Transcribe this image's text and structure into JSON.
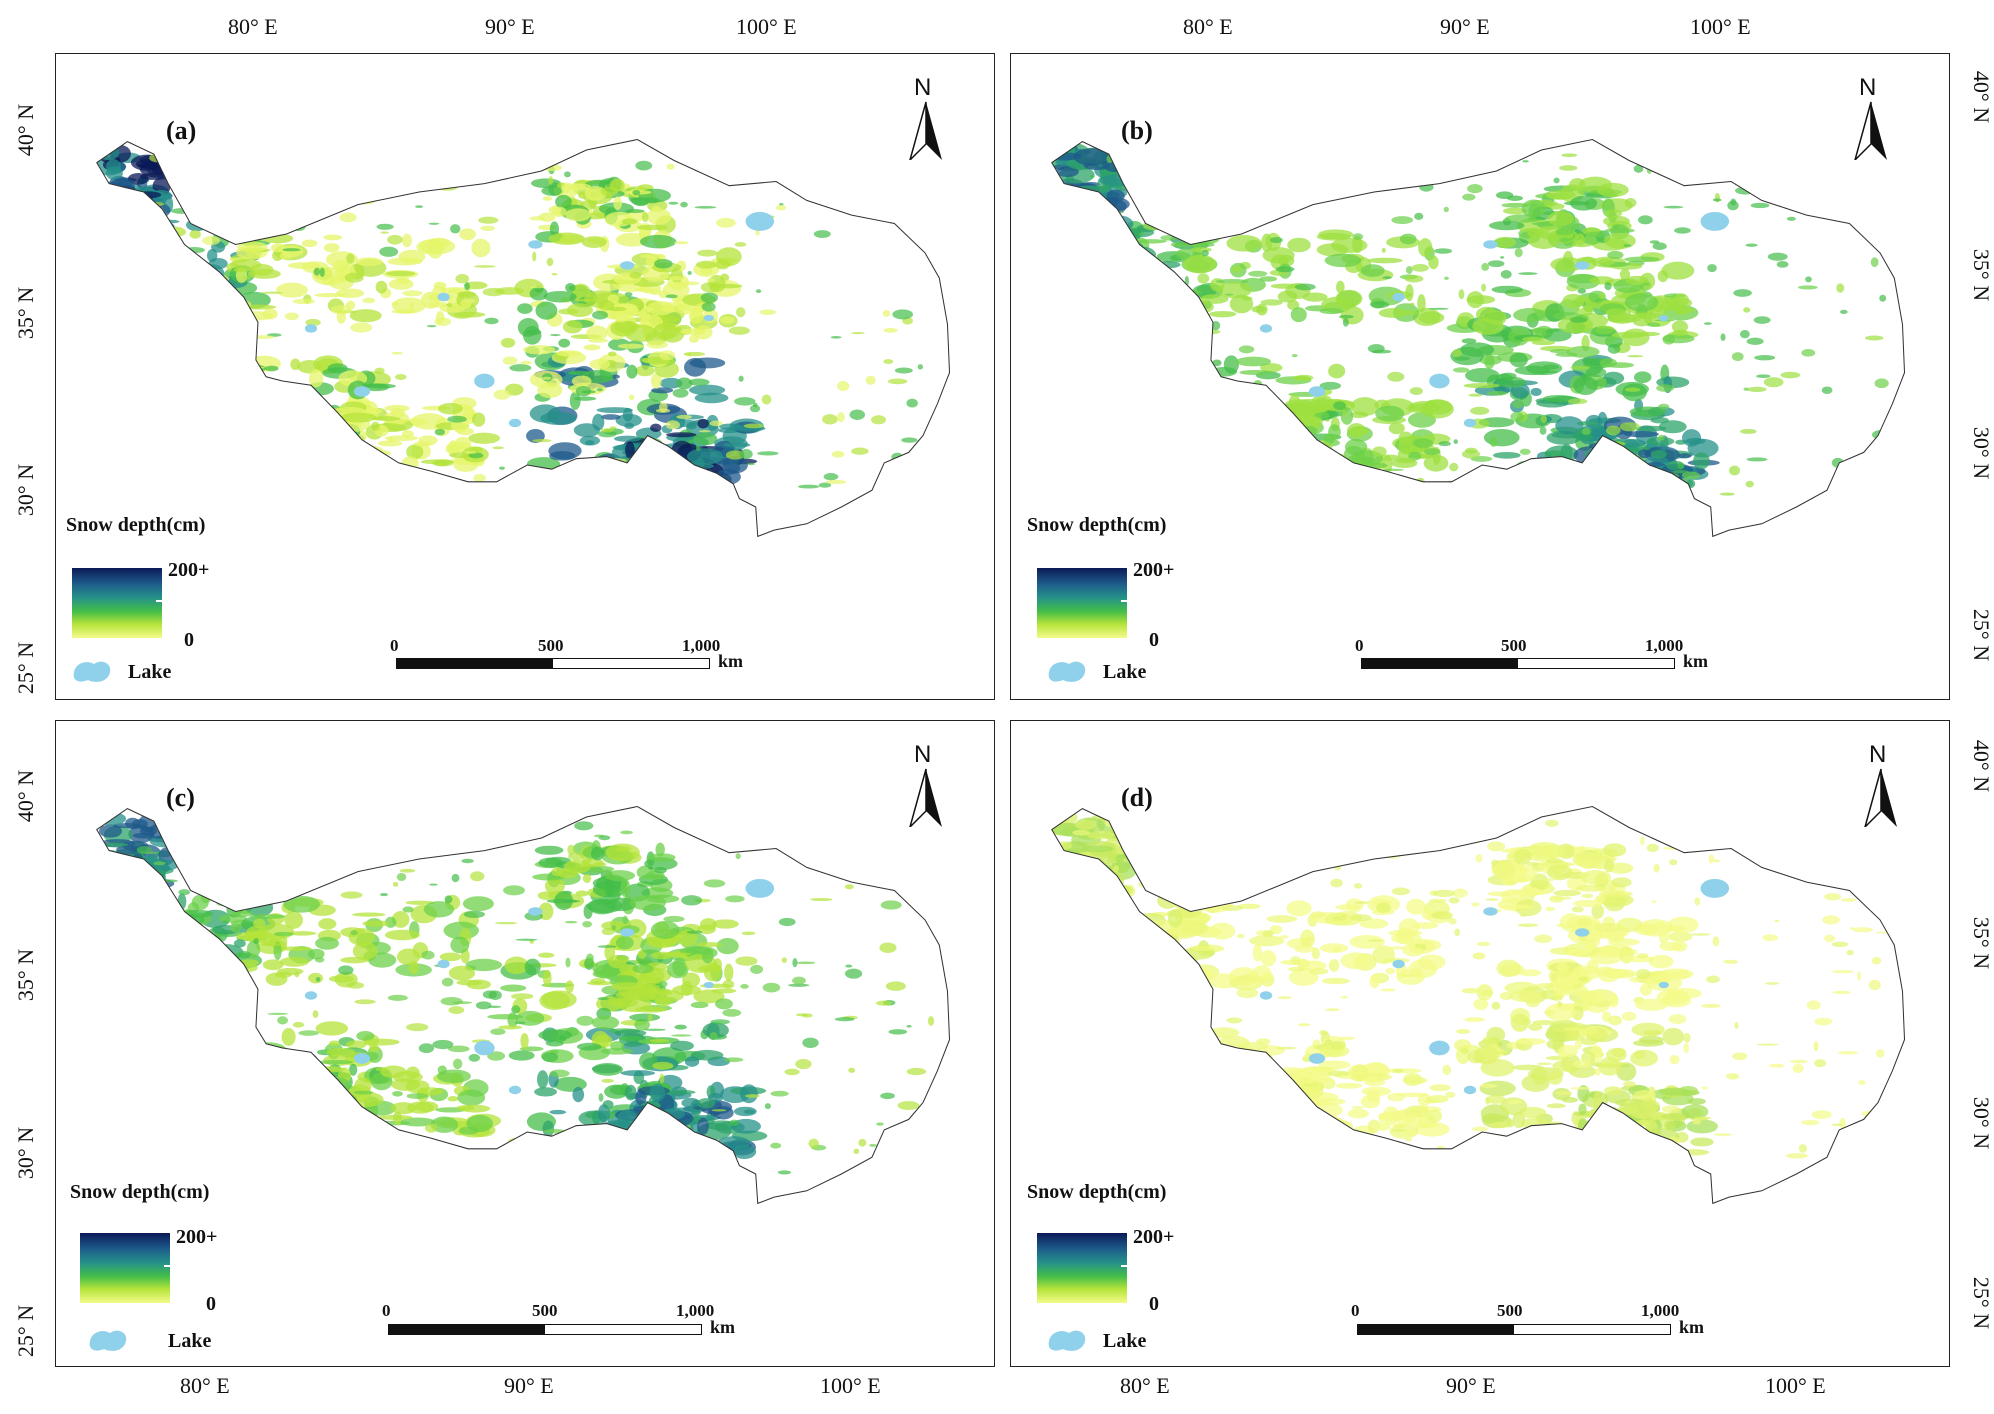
{
  "lon_labels_top_left": [
    "80° E",
    "90° E",
    "100° E"
  ],
  "lon_labels_top_right": [
    "80° E",
    "90° E",
    "100° E"
  ],
  "lon_labels_bottom_left": [
    "80° E",
    "90° E",
    "100° E"
  ],
  "lon_labels_bottom_right": [
    "80° E",
    "90° E",
    "100° E"
  ],
  "lat_labels_left_top": [
    "40° N",
    "35° N",
    "30° N",
    "25° N"
  ],
  "lat_labels_left_bottom": [
    "40° N",
    "35° N",
    "30° N",
    "25° N"
  ],
  "lat_labels_right_top": [
    "40° N",
    "35° N",
    "30° N",
    "25° N"
  ],
  "lat_labels_right_bottom": [
    "40° N",
    "35° N",
    "30° N",
    "25° N"
  ],
  "panels": [
    {
      "label": "(a)",
      "north": "N",
      "legend_title": "Snow depth(cm)",
      "legend_max": "200+",
      "legend_min": "0",
      "lake_label": "Lake",
      "scale": {
        "zero": "0",
        "mid": "500",
        "end": "1,000",
        "unit": "km"
      }
    },
    {
      "label": "(b)",
      "north": "N",
      "legend_title": "Snow depth(cm)",
      "legend_max": "200+",
      "legend_min": "0",
      "lake_label": "Lake",
      "scale": {
        "zero": "0",
        "mid": "500",
        "end": "1,000",
        "unit": "km"
      }
    },
    {
      "label": "(c)",
      "north": "N",
      "legend_title": "Snow depth(cm)",
      "legend_max": "200+",
      "legend_min": "0",
      "lake_label": "Lake",
      "scale": {
        "zero": "0",
        "mid": "500",
        "end": "1,000",
        "unit": "km"
      }
    },
    {
      "label": "(d)",
      "north": "N",
      "legend_title": "Snow depth(cm)",
      "legend_max": "200+",
      "legend_min": "0",
      "lake_label": "Lake",
      "scale": {
        "zero": "0",
        "mid": "500",
        "end": "1,000",
        "unit": "km"
      }
    }
  ],
  "colors": {
    "deep_snow": "#0b1a57",
    "mid_snow": "#25908a",
    "green_snow": "#44be4a",
    "light_snow": "#b4e33a",
    "yellow_snow": "#f4fb8a",
    "lake": "#8fd0ea"
  }
}
